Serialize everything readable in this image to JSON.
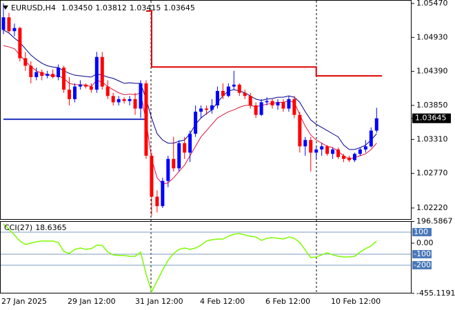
{
  "chart_data": [
    {
      "type": "candlestick",
      "symbol": "EURUSD,H4",
      "ohlc_labels": [
        "1.03450",
        "1.03812",
        "1.03415",
        "1.03645"
      ],
      "up_color": "#0000ff",
      "down_color": "#ff0000",
      "candles": [
        [
          1.0505,
          1.0547,
          1.0498,
          1.0525
        ],
        [
          1.0525,
          1.0532,
          1.05,
          1.0503
        ],
        [
          1.0503,
          1.0515,
          1.0495,
          1.0508
        ],
        [
          1.0508,
          1.051,
          1.0455,
          1.046
        ],
        [
          1.046,
          1.047,
          1.044,
          1.0448
        ],
        [
          1.0448,
          1.0455,
          1.042,
          1.043
        ],
        [
          1.043,
          1.0445,
          1.0425,
          1.0438
        ],
        [
          1.0438,
          1.0442,
          1.0425,
          1.0432
        ],
        [
          1.0432,
          1.044,
          1.0428,
          1.0435
        ],
        [
          1.0435,
          1.0442,
          1.0428,
          1.043
        ],
        [
          1.043,
          1.045,
          1.0425,
          1.0445
        ],
        [
          1.0445,
          1.0448,
          1.0405,
          1.041
        ],
        [
          1.041,
          1.043,
          1.0385,
          1.0395
        ],
        [
          1.0395,
          1.042,
          1.039,
          1.0415
        ],
        [
          1.0415,
          1.0425,
          1.041,
          1.0418
        ],
        [
          1.0418,
          1.042,
          1.0412,
          1.0415
        ],
        [
          1.0415,
          1.042,
          1.0405,
          1.041
        ],
        [
          1.041,
          1.047,
          1.0405,
          1.0462
        ],
        [
          1.0462,
          1.047,
          1.041,
          1.0415
        ],
        [
          1.0415,
          1.0425,
          1.0395,
          1.04
        ],
        [
          1.04,
          1.0405,
          1.0385,
          1.039
        ],
        [
          1.039,
          1.04,
          1.0385,
          1.0395
        ],
        [
          1.0395,
          1.0398,
          1.0388,
          1.0392
        ],
        [
          1.0392,
          1.04,
          1.0385,
          1.0395
        ],
        [
          1.0395,
          1.0405,
          1.037,
          1.038
        ],
        [
          1.038,
          1.0425,
          1.0365,
          1.042
        ],
        [
          1.042,
          1.0425,
          1.03,
          1.0305
        ],
        [
          1.0305,
          1.031,
          1.021,
          1.024
        ],
        [
          1.024,
          1.025,
          1.0215,
          1.0225
        ],
        [
          1.0225,
          1.027,
          1.0222,
          1.0265
        ],
        [
          1.0265,
          1.0305,
          1.0255,
          1.03
        ],
        [
          1.03,
          1.0335,
          1.028,
          1.0285
        ],
        [
          1.0285,
          1.033,
          1.028,
          1.0325
        ],
        [
          1.0325,
          1.0335,
          1.03,
          1.031
        ],
        [
          1.031,
          1.0345,
          1.0295,
          1.034
        ],
        [
          1.034,
          1.0385,
          1.0335,
          1.0375
        ],
        [
          1.0375,
          1.0385,
          1.0365,
          1.038
        ],
        [
          1.038,
          1.0385,
          1.037,
          1.0378
        ],
        [
          1.0378,
          1.0395,
          1.0372,
          1.0385
        ],
        [
          1.0385,
          1.0415,
          1.038,
          1.0408
        ],
        [
          1.0408,
          1.042,
          1.0395,
          1.04
        ],
        [
          1.04,
          1.042,
          1.0398,
          1.0415
        ],
        [
          1.0415,
          1.044,
          1.041,
          1.0418
        ],
        [
          1.0418,
          1.042,
          1.04,
          1.0405
        ],
        [
          1.0405,
          1.041,
          1.0395,
          1.04
        ],
        [
          1.04,
          1.0405,
          1.038,
          1.0385
        ],
        [
          1.0385,
          1.039,
          1.0365,
          1.037
        ],
        [
          1.037,
          1.0395,
          1.0368,
          1.039
        ],
        [
          1.039,
          1.0398,
          1.0385,
          1.0392
        ],
        [
          1.0392,
          1.0395,
          1.038,
          1.0385
        ],
        [
          1.0385,
          1.0395,
          1.0378,
          1.039
        ],
        [
          1.039,
          1.0395,
          1.0375,
          1.038
        ],
        [
          1.038,
          1.04,
          1.0375,
          1.0395
        ],
        [
          1.0395,
          1.04,
          1.0365,
          1.037
        ],
        [
          1.037,
          1.0375,
          1.031,
          1.032
        ],
        [
          1.032,
          1.0335,
          1.0305,
          1.033
        ],
        [
          1.033,
          1.0335,
          1.028,
          1.031
        ],
        [
          1.031,
          1.032,
          1.03,
          1.0315
        ],
        [
          1.0315,
          1.0325,
          1.0305,
          1.032
        ],
        [
          1.032,
          1.0322,
          1.0305,
          1.0308
        ],
        [
          1.0308,
          1.0318,
          1.03,
          1.0315
        ],
        [
          1.0315,
          1.0318,
          1.03,
          1.0303
        ],
        [
          1.0305,
          1.0308,
          1.0295,
          1.03
        ],
        [
          1.0302,
          1.0305,
          1.0295,
          1.0298
        ],
        [
          1.0298,
          1.031,
          1.0295,
          1.0308
        ],
        [
          1.0308,
          1.0318,
          1.0305,
          1.0315
        ],
        [
          1.0315,
          1.033,
          1.031,
          1.032
        ],
        [
          1.032,
          1.035,
          1.0318,
          1.0345
        ],
        [
          1.0345,
          1.03812,
          1.03415,
          1.03645
        ]
      ],
      "ma_fast": {
        "color": "#00008b",
        "values": [
          1.0505,
          1.05,
          1.0492,
          1.0485,
          1.0475,
          1.0465,
          1.0458,
          1.0452,
          1.0448,
          1.0446,
          1.0445,
          1.044,
          1.0436,
          1.0433,
          1.0432,
          1.0431,
          1.043,
          1.0435,
          1.0433,
          1.043,
          1.0428,
          1.0424,
          1.042,
          1.0421,
          1.042,
          1.042,
          1.0395,
          1.0365,
          1.034,
          1.033,
          1.0325,
          1.0325,
          1.0328,
          1.033,
          1.034,
          1.0355,
          1.0365,
          1.0372,
          1.0378,
          1.039,
          1.04,
          1.0408,
          1.041,
          1.0408,
          1.0405,
          1.04,
          1.0395,
          1.0393,
          1.0395,
          1.0396,
          1.0398,
          1.0398,
          1.04,
          1.0398,
          1.039,
          1.0375,
          1.0362,
          1.0355,
          1.035,
          1.0345,
          1.034,
          1.0335,
          1.0322,
          1.0315,
          1.0315,
          1.0318,
          1.0322,
          1.033,
          1.034
        ]
      },
      "ma_slow": {
        "color": "#dc143c",
        "values": [
          1.048,
          1.0478,
          1.0475,
          1.0465,
          1.0455,
          1.0447,
          1.044,
          1.0436,
          1.0434,
          1.0432,
          1.0432,
          1.0428,
          1.042,
          1.0418,
          1.0418,
          1.0417,
          1.0415,
          1.0425,
          1.0422,
          1.0415,
          1.041,
          1.0405,
          1.0402,
          1.0403,
          1.0402,
          1.0405,
          1.036,
          1.03,
          1.027,
          1.026,
          1.0262,
          1.027,
          1.028,
          1.029,
          1.0305,
          1.032,
          1.0335,
          1.0345,
          1.0355,
          1.0365,
          1.037,
          1.0375,
          1.0378,
          1.0382,
          1.0385,
          1.0385,
          1.0383,
          1.0385,
          1.0387,
          1.0388,
          1.039,
          1.039,
          1.0392,
          1.039,
          1.037,
          1.0352,
          1.0338,
          1.033,
          1.0325,
          1.032,
          1.0318,
          1.0312,
          1.0305,
          1.03,
          1.0302,
          1.0305,
          1.0308,
          1.0315,
          1.0325
        ]
      },
      "upper_level": {
        "color": "#dd0000",
        "values": [
          null,
          null,
          null,
          null,
          null,
          null,
          null,
          null,
          null,
          null,
          null,
          null,
          null,
          null,
          null,
          null,
          null,
          null,
          null,
          null,
          null,
          null,
          null,
          null,
          null,
          null,
          1.0535,
          1.0446,
          1.0446,
          1.0446,
          1.0446,
          1.0446,
          1.0446,
          1.0446,
          1.0446,
          1.0446,
          1.0446,
          1.0446,
          1.0446,
          1.0446,
          1.0446,
          1.0446,
          1.0446,
          1.0446,
          1.0446,
          1.0446,
          1.0446,
          1.0446,
          1.0446,
          1.0446,
          1.0446,
          1.0446,
          1.0446,
          1.0446,
          1.0446,
          1.0446,
          1.0446,
          1.0432,
          1.0432,
          1.0432,
          1.0432,
          1.0432,
          1.0432,
          1.0432,
          1.0432,
          1.0432,
          1.0432,
          1.0432,
          1.0432
        ]
      },
      "lower_level": {
        "color": "#1e2fbf",
        "values": [
          1.0363,
          1.0363,
          1.0363,
          1.0363,
          1.0363,
          1.0363,
          1.0363,
          1.0363,
          1.0363,
          1.0363,
          1.0363,
          1.0363,
          1.0363,
          1.0363,
          1.0363,
          1.0363,
          1.0363,
          1.0363,
          1.0363,
          1.0363,
          1.0363,
          1.0363,
          1.0363,
          1.0363,
          1.0363,
          1.0363,
          null,
          null,
          null,
          null,
          null,
          null,
          null,
          null,
          null,
          null,
          null,
          null,
          null,
          null,
          null,
          null,
          null,
          null,
          null,
          null,
          null,
          null,
          null,
          null,
          null,
          null,
          null,
          null,
          null,
          null,
          null,
          null,
          null,
          null,
          null,
          null,
          null,
          null,
          null,
          null,
          null,
          null,
          null
        ]
      },
      "ylim": [
        1.02044,
        1.05525
      ],
      "yticks": [
        {
          "value": 1.0547,
          "label": "1.05470"
        },
        {
          "value": 1.0493,
          "label": "1.04930"
        },
        {
          "value": 1.0439,
          "label": "1.04390"
        },
        {
          "value": 1.0385,
          "label": "1.03850"
        },
        {
          "value": 1.0331,
          "label": "1.03310"
        },
        {
          "value": 1.0277,
          "label": "1.02770"
        },
        {
          "value": 1.0222,
          "label": "1.02220"
        }
      ],
      "x_labels": [
        "27 Jan 2025",
        "29 Jan 12:00",
        "31 Jan 12:00",
        "4 Feb 12:00",
        "6 Feb 12:00",
        "10 Feb 12:00"
      ]
    },
    {
      "type": "line",
      "title": "CCI(27)",
      "color": "#7cfc00",
      "values": [
        175,
        125,
        75,
        19,
        -12,
        0,
        12,
        19,
        19,
        19,
        6,
        -75,
        -94,
        -56,
        -44,
        -56,
        -50,
        -19,
        -19,
        -81,
        -106,
        -112,
        -112,
        -119,
        -119,
        -81,
        -281,
        -440,
        -344,
        -244,
        -156,
        -94,
        -56,
        -44,
        -56,
        -44,
        -19,
        19,
        31,
        37,
        37,
        62,
        81,
        87,
        75,
        62,
        56,
        25,
        44,
        50,
        44,
        37,
        56,
        44,
        6,
        -62,
        -131,
        -125,
        -106,
        -87,
        -106,
        -119,
        -125,
        -125,
        -119,
        -81,
        -50,
        -25,
        18.6365
      ],
      "ylim": [
        -455.1191,
        196.5867
      ],
      "yticks": [
        196.5867,
        100,
        {
          "value": 0,
          "label": "0.00"
        },
        -100,
        -200,
        -455.1191
      ]
    }
  ]
}
